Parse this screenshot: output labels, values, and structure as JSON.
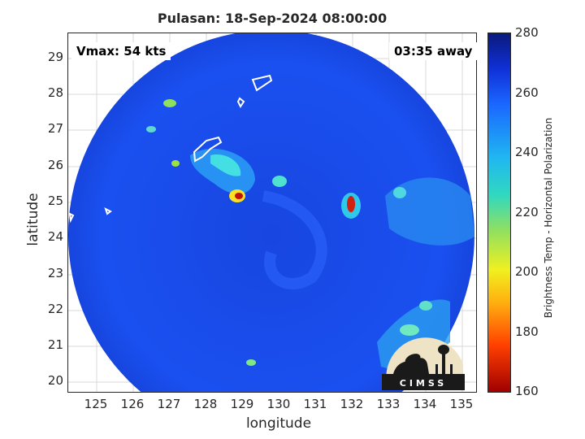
{
  "title": "Pulasan: 18-Sep-2024 08:00:00",
  "vmax": "Vmax: 54 kts",
  "time_away": "03:35 away",
  "xlabel": "longitude",
  "ylabel": "latitude",
  "colorbar": {
    "label": "Brightness Temp - Horizontal Polarization",
    "ticks": [
      "280",
      "260",
      "240",
      "220",
      "200",
      "180",
      "160"
    ],
    "range": [
      160,
      280
    ],
    "colors": [
      "#a00000",
      "#ff4000",
      "#ffb010",
      "#f0f020",
      "#30d8c0",
      "#1a68ff",
      "#0a1a7c"
    ]
  },
  "axes": {
    "xlim": [
      124.2,
      135.3
    ],
    "ylim": [
      19.7,
      29.7
    ],
    "xticks": [
      "125",
      "126",
      "127",
      "128",
      "129",
      "130",
      "131",
      "132",
      "133",
      "134",
      "135"
    ],
    "yticks": [
      "29",
      "28",
      "27",
      "26",
      "25",
      "24",
      "23",
      "22",
      "21",
      "20"
    ],
    "grid": true
  },
  "logo_text": "CIMSS",
  "background_color": "#1f4fe0"
}
